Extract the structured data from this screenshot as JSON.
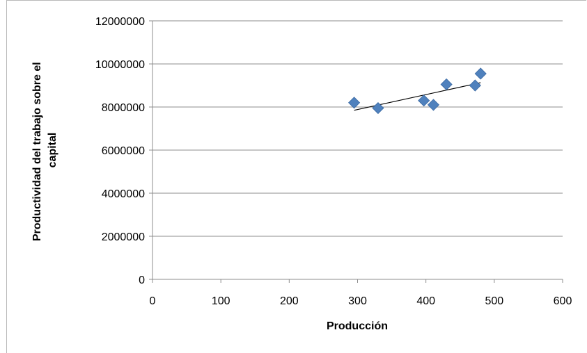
{
  "chart_data": {
    "type": "scatter",
    "title": "",
    "xlabel": "Producción",
    "ylabel_lines": [
      "Productividad del trabajo sobre el",
      "capital"
    ],
    "xlim": [
      0,
      600
    ],
    "ylim": [
      0,
      12000000
    ],
    "x_ticks": [
      0,
      100,
      200,
      300,
      400,
      500,
      600
    ],
    "y_ticks": [
      0,
      2000000,
      4000000,
      6000000,
      8000000,
      10000000,
      12000000
    ],
    "grid": "horizontal",
    "legend": "none",
    "marker": "diamond",
    "series": [
      {
        "points": [
          {
            "x": 295,
            "y": 8200000
          },
          {
            "x": 330,
            "y": 7950000
          },
          {
            "x": 397,
            "y": 8300000
          },
          {
            "x": 411,
            "y": 8100000
          },
          {
            "x": 430,
            "y": 9050000
          },
          {
            "x": 472,
            "y": 9000000
          },
          {
            "x": 480,
            "y": 9550000
          }
        ],
        "color": "#4F81BD"
      }
    ],
    "trendline": {
      "x1": 295,
      "y1": 7850000,
      "x2": 480,
      "y2": 9130000,
      "color": "#000000"
    }
  }
}
